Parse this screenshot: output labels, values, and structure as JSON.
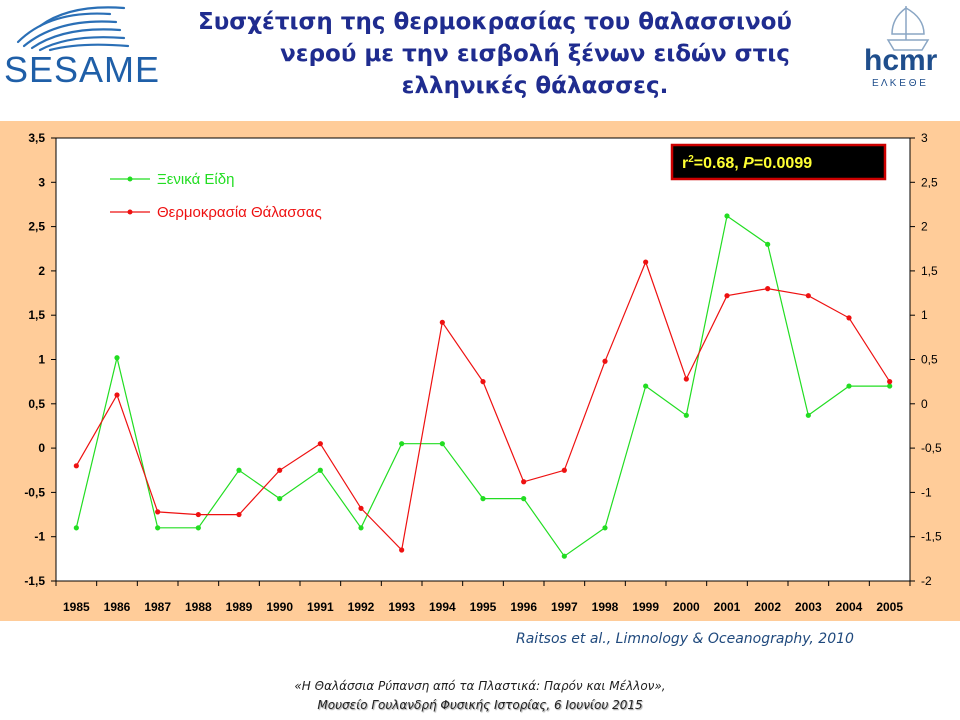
{
  "header": {
    "title_line1": "Συσχέτιση της θερμοκρασίας του θαλασσινού",
    "title_line2": "νερού με την εισβολή ξένων ειδών στις",
    "title_line3": "ελληνικές θάλασσες.",
    "logo_left_text": "SESAME",
    "logo_right_text": "hcmr",
    "logo_right_subtext": "Ε Λ Κ Ε Θ Ε"
  },
  "colors": {
    "alien_species": "#22dd22",
    "sea_temperature": "#ee1111",
    "title": "#1f2c8f",
    "chart_outer_bg": "#ffcc99",
    "plot_bg": "#ffffff"
  },
  "chart_data": {
    "type": "line",
    "x": [
      "1985",
      "1986",
      "1987",
      "1988",
      "1989",
      "1990",
      "1991",
      "1992",
      "1993",
      "1994",
      "1995",
      "1996",
      "1997",
      "1998",
      "1999",
      "2000",
      "2001",
      "2002",
      "2003",
      "2004",
      "2005"
    ],
    "series": [
      {
        "name": "Ξενικά Είδη",
        "axis": "left",
        "values": [
          -0.9,
          1.02,
          -0.9,
          -0.9,
          -0.25,
          -0.57,
          -0.25,
          -0.9,
          0.05,
          0.05,
          -0.57,
          -0.57,
          -1.22,
          -0.9,
          0.7,
          0.37,
          2.62,
          2.3,
          0.37,
          0.7,
          0.7
        ]
      },
      {
        "name": "Θερμοκρασία Θάλασσας",
        "axis": "right",
        "values": [
          -0.7,
          0.1,
          -1.22,
          -1.25,
          -1.25,
          -0.75,
          -0.45,
          -1.18,
          -1.65,
          0.92,
          0.25,
          -0.88,
          -0.75,
          0.48,
          1.6,
          0.28,
          1.22,
          1.3,
          1.22,
          0.97,
          0.25
        ]
      }
    ],
    "left_axis": {
      "ylim": [
        -1.5,
        3.5
      ],
      "ticks": [
        "-1,5",
        "-1",
        "-0,5",
        "0",
        "0,5",
        "1",
        "1,5",
        "2",
        "2,5",
        "3",
        "3,5"
      ]
    },
    "right_axis": {
      "ylim": [
        -2,
        3
      ],
      "ticks": [
        "-2",
        "-1,5",
        "-1",
        "-0,5",
        "0",
        "0,5",
        "1",
        "1,5",
        "2",
        "2,5",
        "3"
      ]
    },
    "annotation": {
      "prefix": "r",
      "sup": "2",
      "mid": "=0.68, ",
      "p": "P",
      "suffix": "=0.0099"
    },
    "legend_placement": "top-left",
    "grid": false
  },
  "citation": "Raitsos et al., Limnology & Oceanography, 2010",
  "footer": {
    "line1": "«Η Θαλάσσια Ρύπανση από τα Πλαστικά: Παρόν και Μέλλον»,",
    "line2": "Μουσείο Γουλανδρή Φυσικής Ιστορίας, 6 Ιουνίου 2015"
  }
}
